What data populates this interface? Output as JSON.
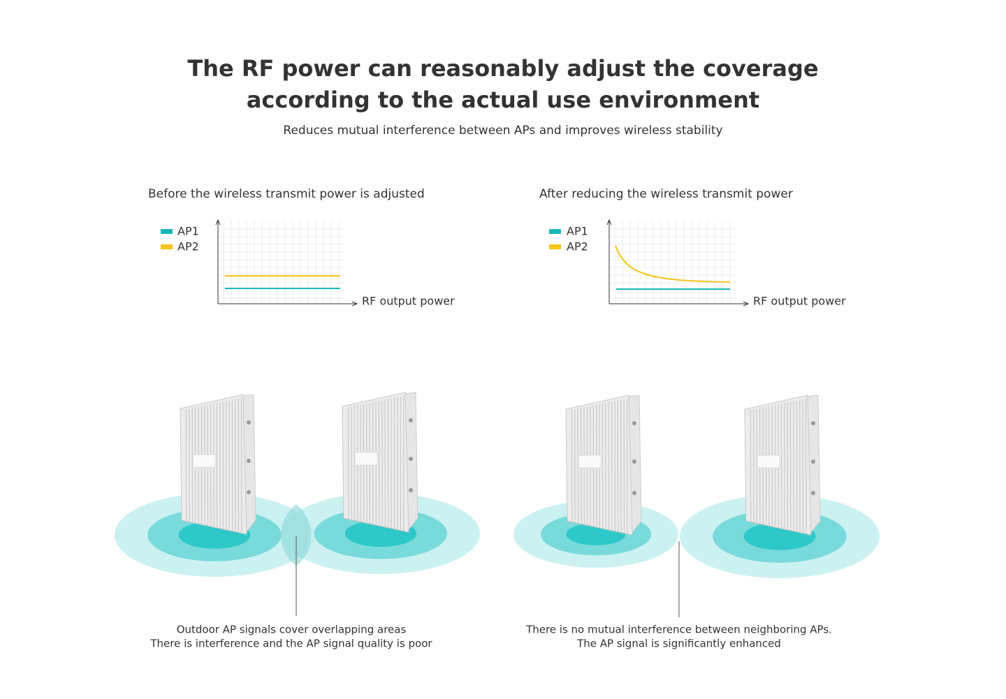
{
  "header": {
    "title": [
      "The RF power can reasonably adjust the coverage",
      "according to the actual use environment"
    ],
    "subtitle": "Reduces mutual interference between APs and improves wireless stability"
  },
  "panels": [
    {
      "title": "Before the wireless transmit power is adjusted",
      "legend": [
        {
          "name": "AP1",
          "color": "#1ab8b8"
        },
        {
          "name": "AP2",
          "color": "#f5c518"
        }
      ],
      "axis_label": "RF output power",
      "caption": [
        "Outdoor AP signals cover overlapping areas",
        "There is interference and the AP signal quality is poor"
      ]
    },
    {
      "title": "After reducing the wireless transmit power",
      "legend": [
        {
          "name": "AP1",
          "color": "#1ab8b8"
        },
        {
          "name": "AP2",
          "color": "#f5c518"
        }
      ],
      "axis_label": "RF output power",
      "caption": [
        "There is no mutual interference between neighboring APs.",
        "The AP signal is significantly enhanced"
      ]
    }
  ]
}
